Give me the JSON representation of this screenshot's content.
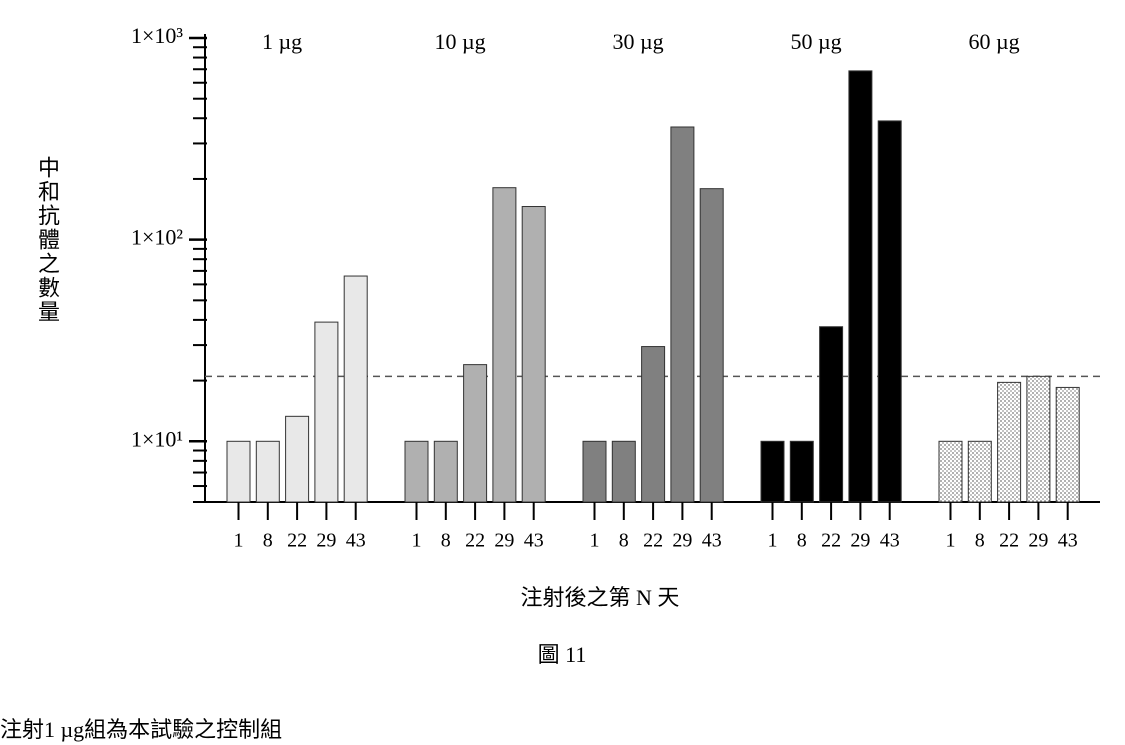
{
  "chart_data": {
    "type": "grouped_bar",
    "y_label": "中和抗體之數量",
    "x_label": "注射後之第 N 天",
    "categories": [
      "1",
      "8",
      "22",
      "29",
      "43"
    ],
    "groups": [
      {
        "name": "1 µg",
        "color": "#e8e8e8",
        "values": [
          10,
          10,
          13.3,
          39,
          66
        ]
      },
      {
        "name": "10 µg",
        "color": "#b0b0b0",
        "values": [
          10,
          10,
          24,
          181,
          146
        ]
      },
      {
        "name": "30 µg",
        "color": "#808080",
        "values": [
          10,
          10,
          29.5,
          362,
          179
        ]
      },
      {
        "name": "50 µg",
        "color": "#000000",
        "values": [
          10,
          10,
          37,
          687,
          388
        ]
      },
      {
        "name": "60 µg",
        "color": "#ffffff",
        "pattern": "dots",
        "values": [
          10,
          10,
          19.6,
          21,
          18.5
        ]
      }
    ],
    "log_scale": true,
    "ylim": [
      5,
      1000
    ],
    "yticks": [
      {
        "value": 10,
        "label": "1×10¹"
      },
      {
        "value": 100,
        "label": "1×10²"
      },
      {
        "value": 1000,
        "label": "1×10³"
      }
    ],
    "minor_yticks": [
      5,
      6,
      7,
      8,
      9,
      20,
      30,
      40,
      50,
      60,
      70,
      80,
      90,
      200,
      300,
      400,
      500,
      600,
      700,
      800,
      900
    ],
    "reference_line": 21
  },
  "figure_caption": "圖 11",
  "footnote": "注射1 µg組為本試驗之控制組"
}
